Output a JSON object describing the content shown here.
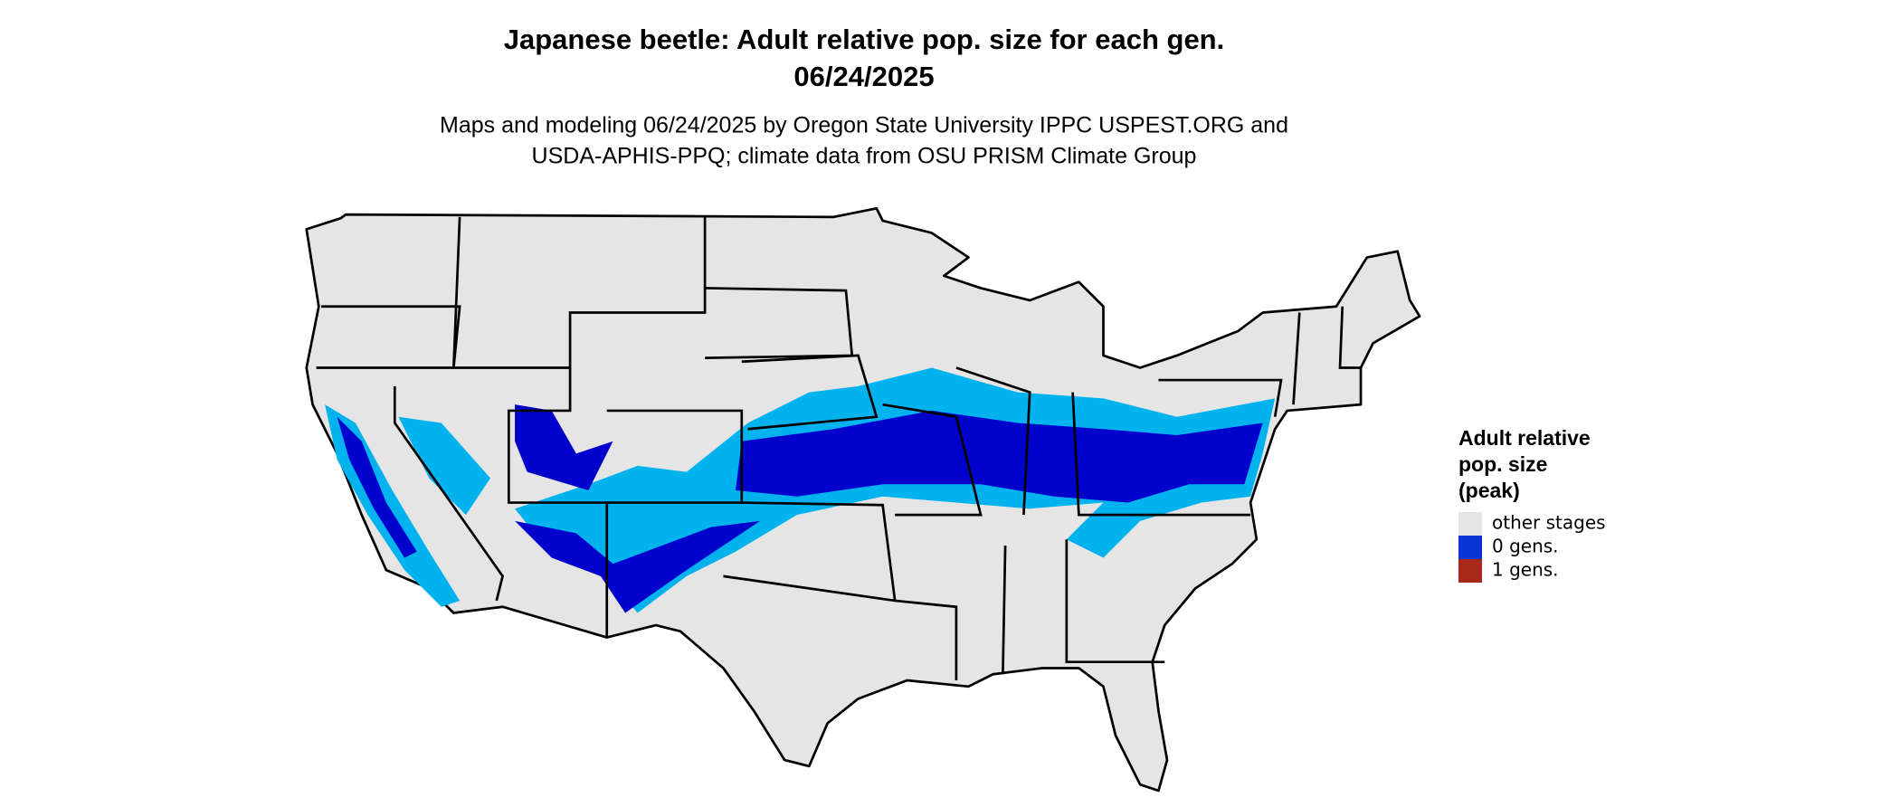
{
  "title": "Japanese beetle: Adult relative pop. size for each gen.",
  "date": "06/24/2025",
  "subtitle_lines": [
    "Maps and modeling 06/24/2025 by Oregon State University IPPC USPEST.ORG and",
    "USDA-APHIS-PPQ; climate data from OSU PRISM Climate Group"
  ],
  "legend": {
    "title_lines": [
      "Adult relative",
      "pop. size",
      "(peak)"
    ],
    "items": [
      {
        "label": "other stages",
        "color": "#e5e5e5"
      },
      {
        "label": "0 gens.",
        "color": "#0a35d6"
      },
      {
        "label": "1 gens.",
        "color": "#a8281a"
      }
    ]
  }
}
